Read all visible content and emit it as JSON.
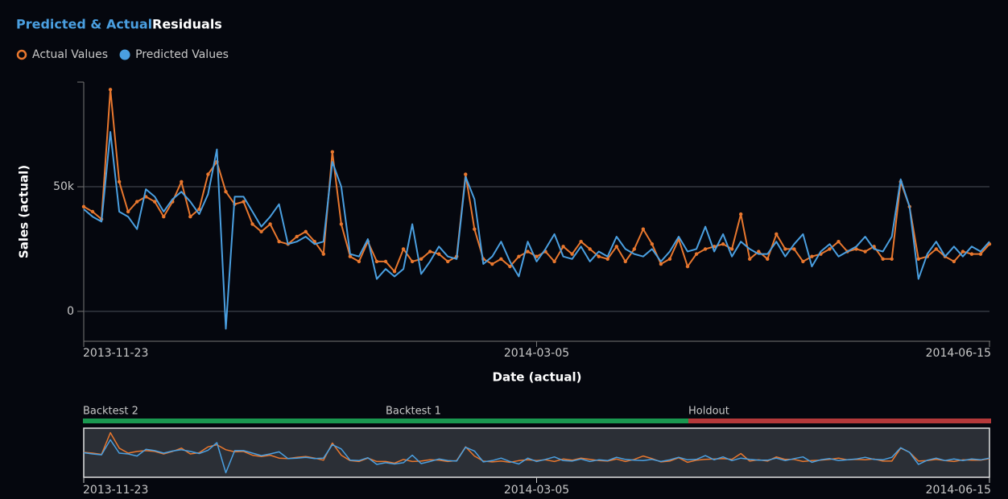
{
  "tabs": [
    "Predicted & Actual",
    "Residuals"
  ],
  "navigator": {
    "segments": [
      "Backtest 2",
      "Backtest 1",
      "Holdout"
    ]
  },
  "chart_data": {
    "type": "line",
    "x_label": "Date (actual)",
    "y_label": "Sales (actual)",
    "x": [
      "2013-11-23",
      "2013-11-25",
      "2013-11-27",
      "2013-11-29",
      "2013-12-01",
      "2013-12-03",
      "2013-12-05",
      "2013-12-07",
      "2013-12-09",
      "2013-12-11",
      "2013-12-13",
      "2013-12-15",
      "2013-12-17",
      "2013-12-19",
      "2013-12-21",
      "2013-12-23",
      "2013-12-25",
      "2013-12-27",
      "2013-12-29",
      "2013-12-31",
      "2014-01-02",
      "2014-01-04",
      "2014-01-06",
      "2014-01-08",
      "2014-01-10",
      "2014-01-12",
      "2014-01-14",
      "2014-01-16",
      "2014-01-18",
      "2014-01-20",
      "2014-01-22",
      "2014-01-24",
      "2014-01-26",
      "2014-01-28",
      "2014-01-30",
      "2014-02-01",
      "2014-02-03",
      "2014-02-05",
      "2014-02-07",
      "2014-02-09",
      "2014-02-11",
      "2014-02-13",
      "2014-02-15",
      "2014-02-17",
      "2014-02-19",
      "2014-02-21",
      "2014-02-23",
      "2014-02-25",
      "2014-02-27",
      "2014-03-01",
      "2014-03-03",
      "2014-03-05",
      "2014-03-07",
      "2014-03-09",
      "2014-03-11",
      "2014-03-13",
      "2014-03-15",
      "2014-03-17",
      "2014-03-19",
      "2014-03-21",
      "2014-03-23",
      "2014-03-25",
      "2014-03-27",
      "2014-03-29",
      "2014-03-31",
      "2014-04-02",
      "2014-04-04",
      "2014-04-06",
      "2014-04-08",
      "2014-04-10",
      "2014-04-12",
      "2014-04-14",
      "2014-04-16",
      "2014-04-18",
      "2014-04-20",
      "2014-04-22",
      "2014-04-24",
      "2014-04-26",
      "2014-04-28",
      "2014-04-30",
      "2014-05-02",
      "2014-05-04",
      "2014-05-06",
      "2014-05-08",
      "2014-05-10",
      "2014-05-12",
      "2014-05-14",
      "2014-05-16",
      "2014-05-18",
      "2014-05-20",
      "2014-05-22",
      "2014-05-24",
      "2014-05-26",
      "2014-05-28",
      "2014-05-30",
      "2014-06-01",
      "2014-06-03",
      "2014-06-05",
      "2014-06-07",
      "2014-06-09",
      "2014-06-11",
      "2014-06-13",
      "2014-06-15"
    ],
    "series": [
      {
        "name": "Actual Values",
        "color": "#e8772e",
        "markers": true,
        "values": [
          42000,
          40000,
          37000,
          89000,
          52000,
          40000,
          44000,
          46000,
          44000,
          38000,
          44000,
          52000,
          38000,
          41000,
          55000,
          60000,
          48000,
          43000,
          44000,
          35000,
          32000,
          35000,
          28000,
          27000,
          30000,
          32000,
          28000,
          23000,
          64000,
          35000,
          22000,
          20000,
          28000,
          20000,
          20000,
          16000,
          25000,
          20000,
          21000,
          24000,
          23000,
          20000,
          22000,
          55000,
          33000,
          21000,
          19000,
          21000,
          18000,
          22000,
          24000,
          22000,
          24000,
          20000,
          26000,
          23000,
          28000,
          25000,
          22000,
          21000,
          26000,
          20000,
          25000,
          33000,
          27000,
          19000,
          21000,
          29000,
          18000,
          23000,
          25000,
          26000,
          27000,
          25000,
          39000,
          21000,
          24000,
          21000,
          31000,
          25000,
          25000,
          20000,
          22000,
          23000,
          25000,
          28000,
          24000,
          25000,
          24000,
          26000,
          21000,
          21000,
          52000,
          42000,
          21000,
          22000,
          25000,
          22000,
          20000,
          24000,
          23000,
          23000,
          27000
        ]
      },
      {
        "name": "Predicted Values",
        "color": "#4a9fe0",
        "markers": false,
        "values": [
          41000,
          38000,
          36000,
          72000,
          40000,
          38000,
          33000,
          49000,
          46000,
          40000,
          45000,
          48000,
          44000,
          39000,
          47000,
          65000,
          -7000,
          46000,
          46000,
          40000,
          34000,
          38000,
          43000,
          27000,
          28000,
          30000,
          27000,
          28000,
          60000,
          50000,
          23000,
          22000,
          29000,
          13000,
          17000,
          14000,
          17000,
          35000,
          15000,
          20000,
          26000,
          22000,
          21000,
          54000,
          45000,
          19000,
          22000,
          28000,
          20000,
          14000,
          28000,
          20000,
          25000,
          31000,
          22000,
          21000,
          26000,
          20000,
          24000,
          22000,
          30000,
          25000,
          23000,
          22000,
          25000,
          20000,
          24000,
          30000,
          24000,
          25000,
          34000,
          24000,
          31000,
          22000,
          28000,
          25000,
          23000,
          23000,
          28000,
          22000,
          27000,
          31000,
          18000,
          24000,
          27000,
          22000,
          24000,
          26000,
          30000,
          25000,
          24000,
          30000,
          53000,
          42000,
          13000,
          23000,
          28000,
          22000,
          26000,
          22000,
          26000,
          24000,
          28000
        ]
      }
    ],
    "xlim": [
      "2013-11-23",
      "2014-06-15"
    ],
    "xticks": [
      "2013-11-23",
      "2014-03-05",
      "2014-06-15"
    ],
    "ylim": [
      -12000,
      92000
    ],
    "yticks": [
      0,
      {
        "value": 50000,
        "label": "50k"
      }
    ],
    "grid": true
  }
}
